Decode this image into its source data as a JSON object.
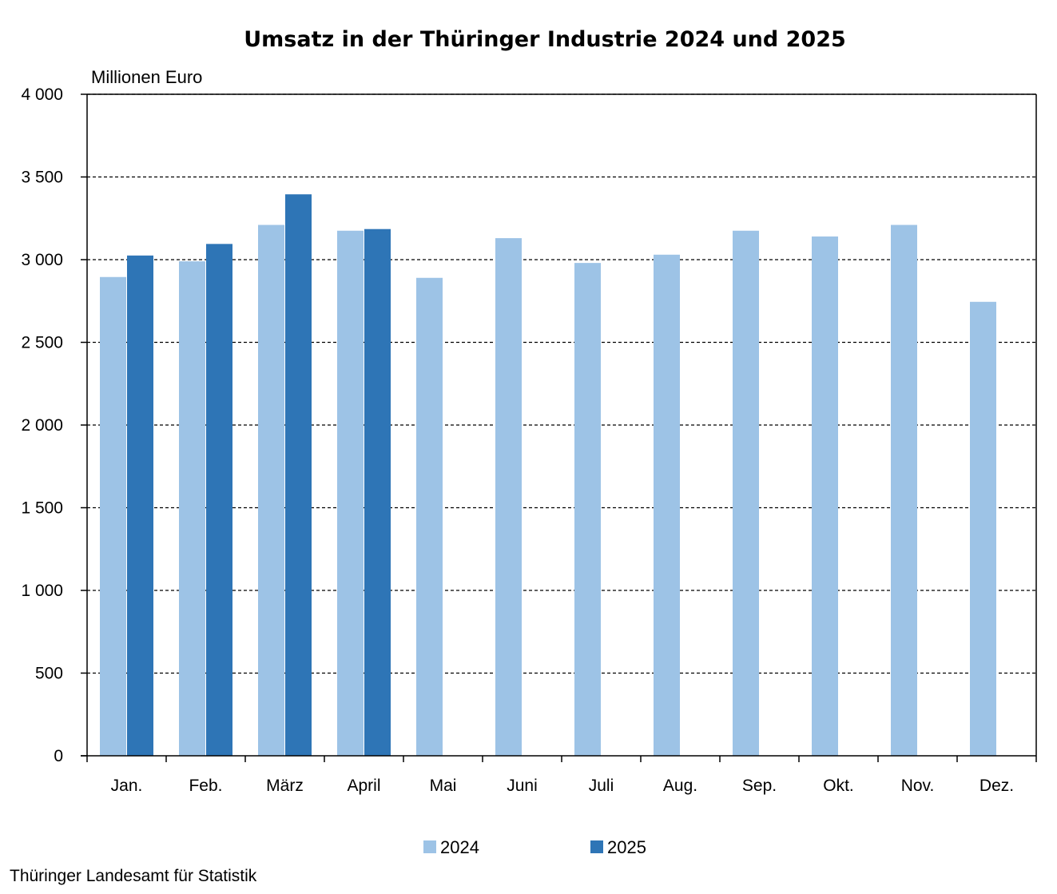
{
  "chart_data": {
    "type": "bar",
    "title": "Umsatz in der Thüringer Industrie 2024 und 2025",
    "unit_label": "Millionen Euro",
    "xlabel": "",
    "ylabel": "",
    "ylim": [
      0,
      4000
    ],
    "yticks": [
      {
        "value": 0,
        "label": "0"
      },
      {
        "value": 500,
        "label": "500"
      },
      {
        "value": 1000,
        "label": "1 000"
      },
      {
        "value": 1500,
        "label": "1 500"
      },
      {
        "value": 2000,
        "label": "2 000"
      },
      {
        "value": 2500,
        "label": "2 500"
      },
      {
        "value": 3000,
        "label": "3 000"
      },
      {
        "value": 3500,
        "label": "3 500"
      },
      {
        "value": 4000,
        "label": "4 000"
      }
    ],
    "grid": "horizontal-dashed",
    "legend_position": "bottom-center",
    "categories": [
      "Jan.",
      "Feb.",
      "März",
      "April",
      "Mai",
      "Juni",
      "Juli",
      "Aug.",
      "Sep.",
      "Okt.",
      "Nov.",
      "Dez."
    ],
    "series": [
      {
        "name": "2024",
        "color": "#9dc3e6",
        "values": [
          2895,
          2990,
          3210,
          3175,
          2890,
          3130,
          2980,
          3030,
          3175,
          3140,
          3210,
          2745
        ]
      },
      {
        "name": "2025",
        "color": "#2e75b6",
        "values": [
          3025,
          3095,
          3395,
          3185,
          null,
          null,
          null,
          null,
          null,
          null,
          null,
          null
        ]
      }
    ]
  },
  "source": "Thüringer Landesamt für Statistik"
}
